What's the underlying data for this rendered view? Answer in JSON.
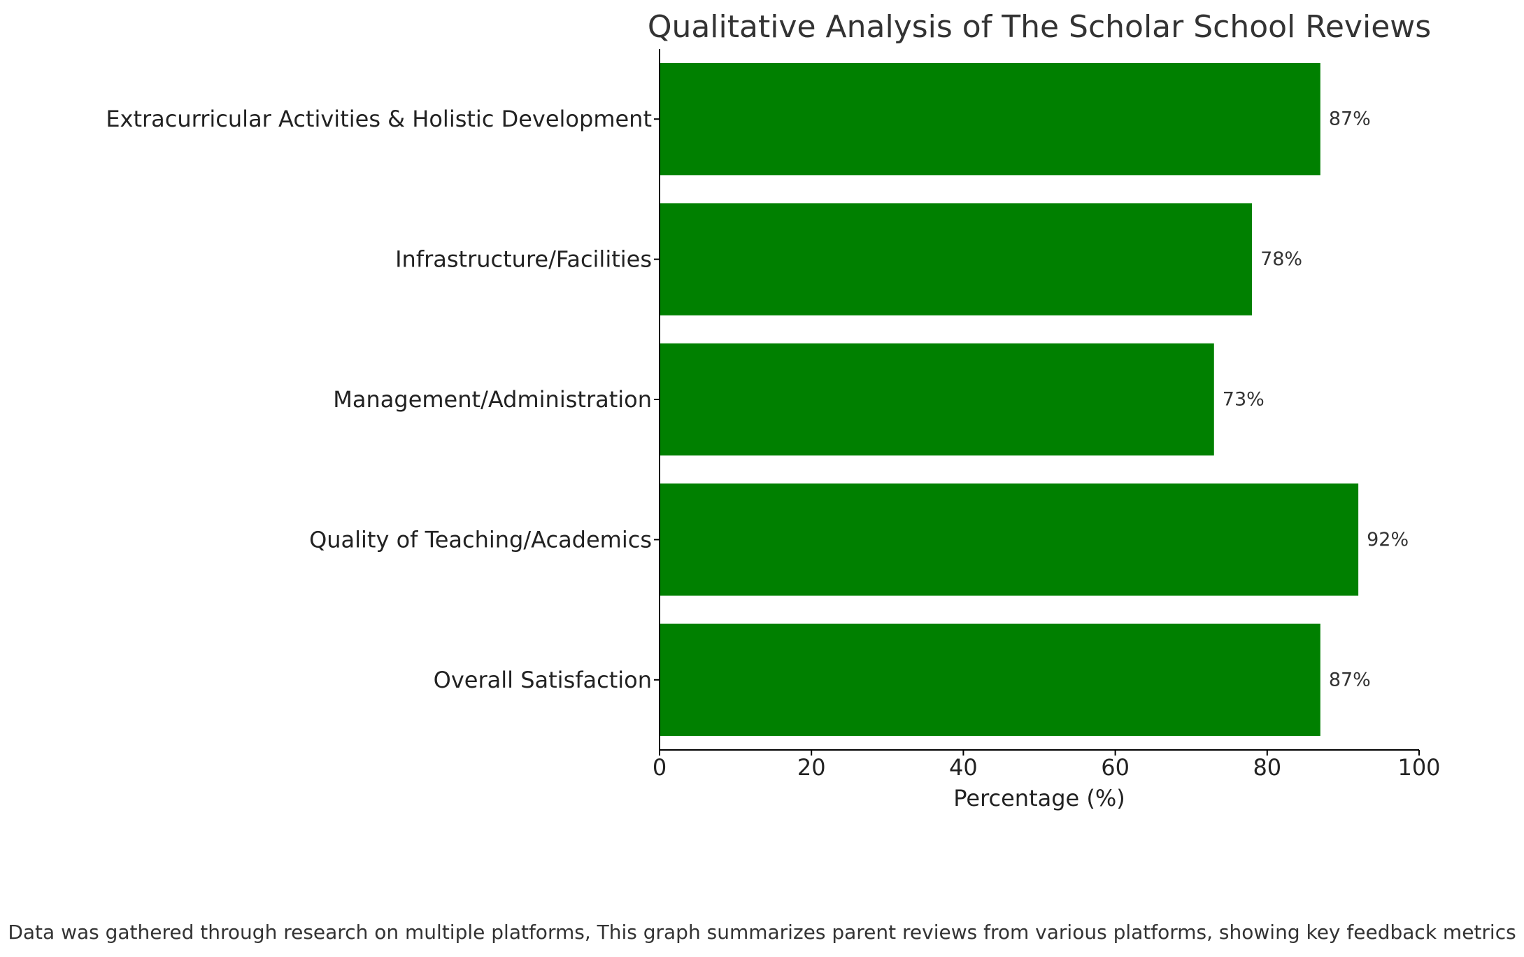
{
  "chart_data": {
    "type": "bar",
    "orientation": "horizontal",
    "title": "Qualitative Analysis of The Scholar School Reviews",
    "xlabel": "Percentage (%)",
    "ylabel": "",
    "categories": [
      "Overall Satisfaction",
      "Quality of Teaching/Academics",
      "Management/Administration",
      "Infrastructure/Facilities",
      "Extracurricular Activities & Holistic Development"
    ],
    "values": [
      87,
      92,
      73,
      78,
      87
    ],
    "value_labels": [
      "87%",
      "92%",
      "73%",
      "78%",
      "87%"
    ],
    "xlim": [
      0,
      100
    ],
    "xticks": [
      0,
      20,
      40,
      60,
      80,
      100
    ],
    "grid": false,
    "legend": "none",
    "bar_color": "#008000"
  },
  "caption": "Data was gathered through research on multiple platforms, This graph summarizes parent reviews from various platforms, showing key feedback metrics"
}
